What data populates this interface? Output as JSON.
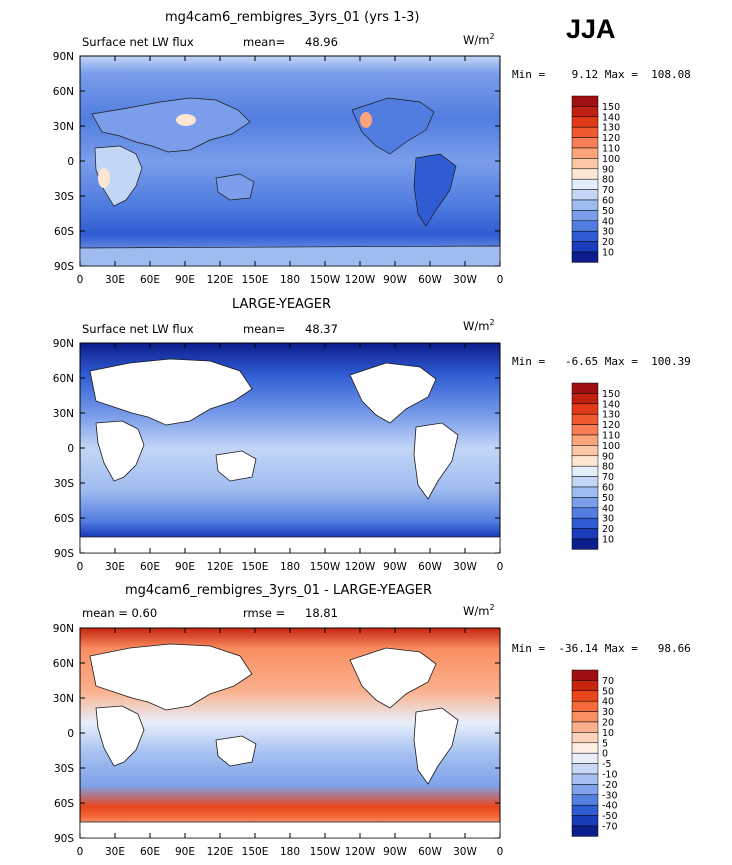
{
  "season": "JJA",
  "units_label": "W/m",
  "units_exp": "2",
  "lon_ticks": [
    "0",
    "30E",
    "60E",
    "90E",
    "120E",
    "150E",
    "180",
    "150W",
    "120W",
    "90W",
    "60W",
    "30W",
    "0"
  ],
  "lat_ticks": [
    "90N",
    "60N",
    "30N",
    "0",
    "30S",
    "60S",
    "90S"
  ],
  "panels": [
    {
      "title": "mg4cam6_rembigres_3yrs_01 (yrs 1-3)",
      "left_label": "Surface net LW flux",
      "stat_label": "mean=",
      "stat_value": "48.96",
      "minmax": "Min =    9.12 Max =  108.08",
      "colorbar": {
        "labels": [
          "150",
          "140",
          "130",
          "120",
          "110",
          "100",
          "90",
          "80",
          "70",
          "60",
          "50",
          "40",
          "30",
          "20",
          "10"
        ],
        "colors": [
          "#a01010",
          "#c02010",
          "#e03a18",
          "#f05a30",
          "#f87f55",
          "#fca47c",
          "#fdc7a6",
          "#fde6d2",
          "#e4edfb",
          "#c3d6f6",
          "#9fbcf0",
          "#7a9eea",
          "#527de0",
          "#2f5cd3",
          "#1a3cba",
          "#0c1d8c"
        ]
      }
    },
    {
      "title": "LARGE-YEAGER",
      "left_label": "Surface net LW flux",
      "stat_label": "mean=",
      "stat_value": "48.37",
      "minmax": "Min =   -6.65 Max =  100.39",
      "colorbar": {
        "labels": [
          "150",
          "140",
          "130",
          "120",
          "110",
          "100",
          "90",
          "80",
          "70",
          "60",
          "50",
          "40",
          "30",
          "20",
          "10"
        ],
        "colors": [
          "#a01010",
          "#c02010",
          "#e03a18",
          "#f05a30",
          "#f87f55",
          "#fca47c",
          "#fdc7a6",
          "#fde6d2",
          "#e4edfb",
          "#c3d6f6",
          "#9fbcf0",
          "#7a9eea",
          "#527de0",
          "#2f5cd3",
          "#1a3cba",
          "#0c1d8c"
        ]
      }
    },
    {
      "title": "mg4cam6_rembigres_3yrs_01 - LARGE-YEAGER",
      "left_label": "mean =    0.60",
      "stat_label": "rmse =",
      "stat_value": "18.81",
      "minmax": "Min =  -36.14 Max =   98.66",
      "colorbar": {
        "labels": [
          "70",
          "50",
          "40",
          "30",
          "20",
          "10",
          "5",
          "0",
          "-5",
          "-10",
          "-20",
          "-30",
          "-40",
          "-50",
          "-70"
        ],
        "colors": [
          "#a01010",
          "#c82510",
          "#e8461c",
          "#f56a3a",
          "#f98e61",
          "#fbb18e",
          "#fdd2bb",
          "#fdeee2",
          "#e8effb",
          "#c8d9f6",
          "#a4c0f0",
          "#7fa2ea",
          "#5680e0",
          "#2f5cd3",
          "#1a3cba",
          "#0c1d8c"
        ]
      }
    }
  ]
}
